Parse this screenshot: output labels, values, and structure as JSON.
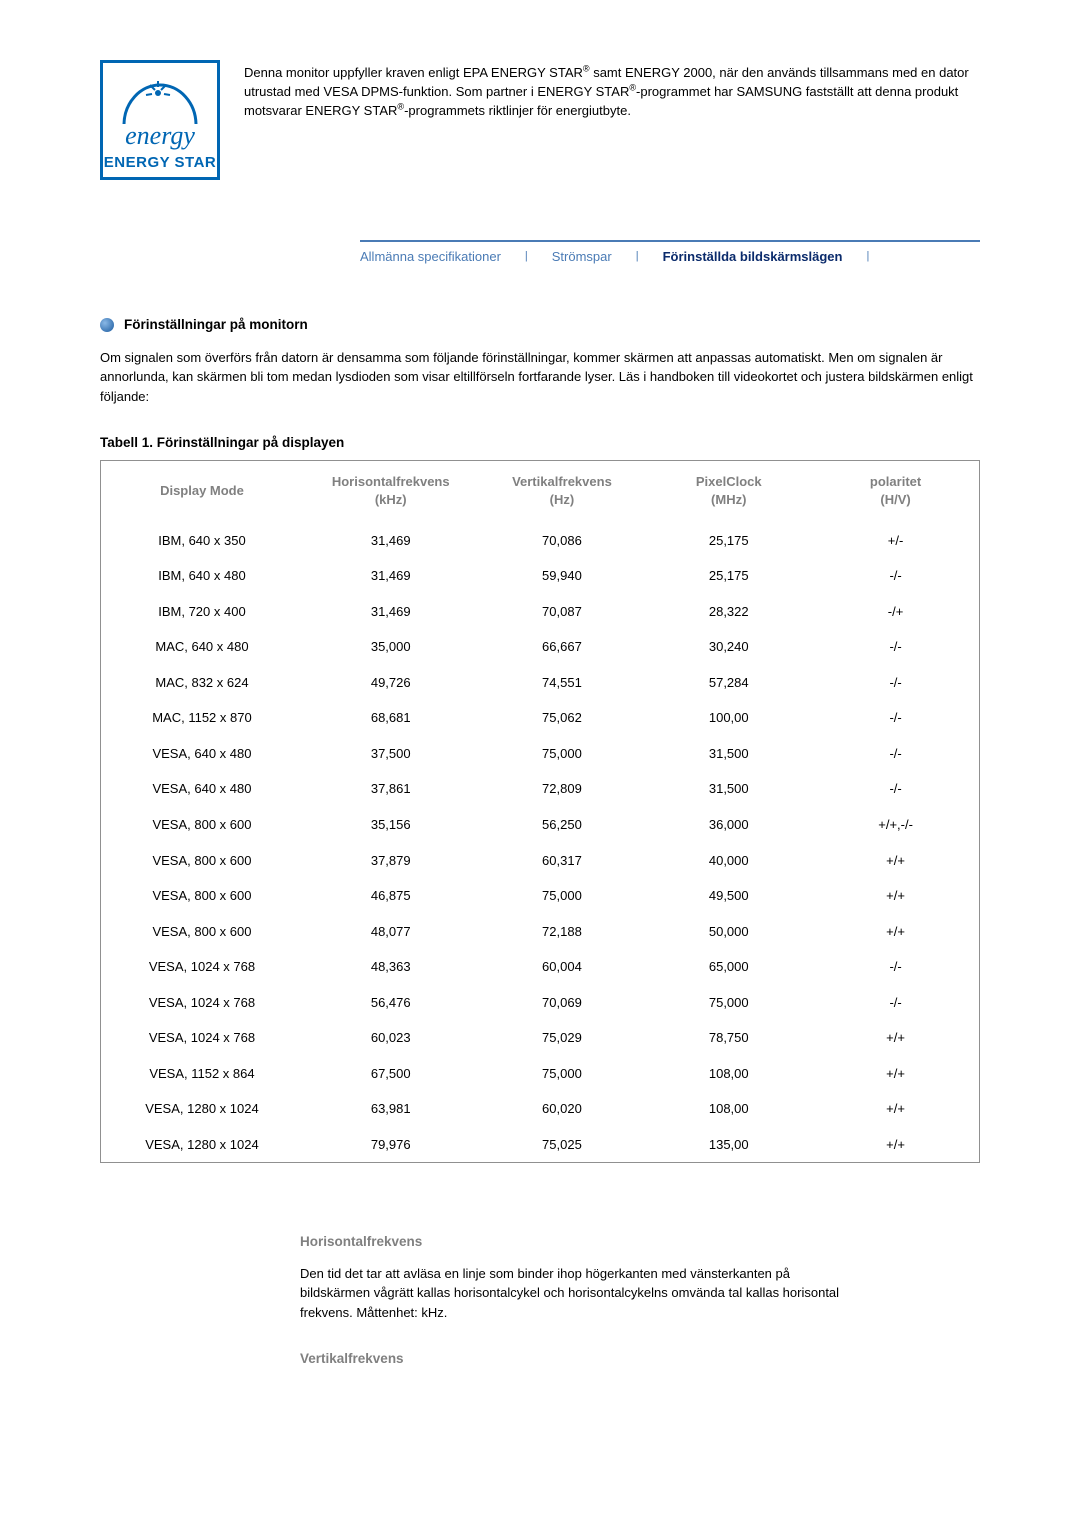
{
  "logo": {
    "script": "energy",
    "label": "ENERGY STAR",
    "border_color": "#0066b3",
    "text_color": "#0066b3"
  },
  "intro": {
    "text_parts": [
      "Denna monitor uppfyller kraven enligt EPA ENERGY STAR",
      " samt ENERGY 2000, när den används tillsammans med en dator utrustad med VESA DPMS-funktion. Som partner i ENERGY STAR",
      "-programmet har SAMSUNG fastställt att denna produkt motsvarar ENERGY STAR",
      "-programmets riktlinjer för energiutbyte."
    ],
    "sup": "®"
  },
  "tabs": {
    "items": [
      {
        "label": "Allmänna specifikationer",
        "active": false
      },
      {
        "label": "Strömspar",
        "active": false
      },
      {
        "label": "Förinställda bildskärmslägen",
        "active": true
      }
    ],
    "color": "#4a7bb5",
    "active_color": "#0a2a6b"
  },
  "section": {
    "title": "Förinställningar på monitorn",
    "paragraph": "Om signalen som överförs från datorn är densamma som följande förinställningar, kommer skärmen att anpassas automatiskt. Men om signalen är annorlunda, kan skärmen bli tom medan lysdioden som visar eltillförseln fortfarande lyser. Läs i handboken till videokortet och justera bildskärmen enligt följande:"
  },
  "table": {
    "caption": "Tabell 1. Förinställningar på displayen",
    "header_color": "#808080",
    "border_color": "#909090",
    "columns": [
      "Display Mode",
      "Horisontalfrekvens (kHz)",
      "Vertikalfrekvens (Hz)",
      "PixelClock (MHz)",
      "polaritet (H/V)"
    ],
    "col_widths": [
      "23%",
      "20%",
      "19%",
      "19%",
      "19%"
    ],
    "rows": [
      [
        "IBM, 640 x 350",
        "31,469",
        "70,086",
        "25,175",
        "+/-"
      ],
      [
        "IBM, 640 x 480",
        "31,469",
        "59,940",
        "25,175",
        "-/-"
      ],
      [
        "IBM, 720 x 400",
        "31,469",
        "70,087",
        "28,322",
        "-/+"
      ],
      [
        "MAC, 640 x 480",
        "35,000",
        "66,667",
        "30,240",
        "-/-"
      ],
      [
        "MAC, 832 x 624",
        "49,726",
        "74,551",
        "57,284",
        "-/-"
      ],
      [
        "MAC, 1152 x 870",
        "68,681",
        "75,062",
        "100,00",
        "-/-"
      ],
      [
        "VESA, 640 x 480",
        "37,500",
        "75,000",
        "31,500",
        "-/-"
      ],
      [
        "VESA, 640 x 480",
        "37,861",
        "72,809",
        "31,500",
        "-/-"
      ],
      [
        "VESA, 800 x 600",
        "35,156",
        "56,250",
        "36,000",
        "+/+,-/-"
      ],
      [
        "VESA, 800 x 600",
        "37,879",
        "60,317",
        "40,000",
        "+/+"
      ],
      [
        "VESA, 800 x 600",
        "46,875",
        "75,000",
        "49,500",
        "+/+"
      ],
      [
        "VESA, 800 x 600",
        "48,077",
        "72,188",
        "50,000",
        "+/+"
      ],
      [
        "VESA, 1024 x 768",
        "48,363",
        "60,004",
        "65,000",
        "-/-"
      ],
      [
        "VESA, 1024 x 768",
        "56,476",
        "70,069",
        "75,000",
        "-/-"
      ],
      [
        "VESA, 1024 x 768",
        "60,023",
        "75,029",
        "78,750",
        "+/+"
      ],
      [
        "VESA, 1152 x 864",
        "67,500",
        "75,000",
        "108,00",
        "+/+"
      ],
      [
        "VESA, 1280 x 1024",
        "63,981",
        "60,020",
        "108,00",
        "+/+"
      ],
      [
        "VESA, 1280 x 1024",
        "79,976",
        "75,025",
        "135,00",
        "+/+"
      ]
    ]
  },
  "definitions": [
    {
      "title": "Horisontalfrekvens",
      "body": "Den tid det tar att avläsa en linje som binder ihop högerkanten med vänsterkanten på bildskärmen vågrätt kallas horisontalcykel och horisontalcykelns omvända tal kallas horisontal frekvens. Måttenhet: kHz."
    },
    {
      "title": "Vertikalfrekvens",
      "body": ""
    }
  ]
}
